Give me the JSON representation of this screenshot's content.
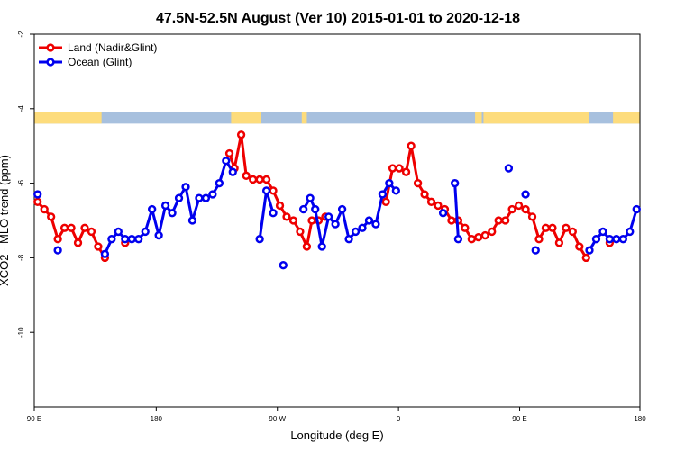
{
  "chart_data": {
    "type": "line",
    "title": "47.5N-52.5N August (Ver 10)   2015-01-01 to 2020-12-18",
    "xlabel": "Longitude (deg E)",
    "ylabel": "XCO2 - MLO trend (ppm)",
    "xlim": [
      90,
      450
    ],
    "ylim": [
      -12,
      -2
    ],
    "x_ticks": [
      {
        "value": 90,
        "label": "90 E"
      },
      {
        "value": 162.5,
        "label": "180"
      },
      {
        "value": 234.5,
        "label": "90 W"
      },
      {
        "value": 306.5,
        "label": "0"
      },
      {
        "value": 378.5,
        "label": "90 E"
      },
      {
        "value": 450,
        "label": "180"
      }
    ],
    "y_ticks": [
      {
        "value": -2,
        "label": "-2"
      },
      {
        "value": -4,
        "label": "-4"
      },
      {
        "value": -6,
        "label": "-6"
      },
      {
        "value": -8,
        "label": "-8"
      },
      {
        "value": -10,
        "label": "-10"
      }
    ],
    "legend_position": "top-left",
    "land_sea_band": {
      "y_range": [
        -4.4,
        -4.1
      ],
      "land_color": "#FDDC7C",
      "ocean_color": "#A7C0DE"
    },
    "series": [
      {
        "name": "Land (Nadir&Glint)",
        "color": "#EE0000",
        "segments": [
          [
            [
              92,
              -6.5
            ],
            [
              96,
              -6.7
            ],
            [
              100,
              -6.9
            ],
            [
              104,
              -7.5
            ],
            [
              108,
              -7.2
            ],
            [
              112,
              -7.2
            ],
            [
              116,
              -7.6
            ],
            [
              120,
              -7.2
            ],
            [
              124,
              -7.3
            ],
            [
              128,
              -7.7
            ],
            [
              132,
              -8.0
            ]
          ],
          [
            [
              144,
              -7.6
            ]
          ],
          [
            [
              206,
              -5.2
            ],
            [
              209,
              -5.6
            ],
            [
              213,
              -4.7
            ],
            [
              216,
              -5.8
            ],
            [
              220,
              -5.9
            ],
            [
              224,
              -5.9
            ],
            [
              228,
              -5.9
            ],
            [
              232,
              -6.2
            ],
            [
              236,
              -6.6
            ],
            [
              240,
              -6.9
            ],
            [
              244,
              -7.0
            ],
            [
              248,
              -7.3
            ],
            [
              252,
              -7.7
            ],
            [
              255,
              -7.0
            ],
            [
              259,
              -7.0
            ],
            [
              263,
              -6.9
            ]
          ],
          [
            [
              299,
              -6.5
            ],
            [
              303,
              -5.6
            ],
            [
              307,
              -5.6
            ],
            [
              311,
              -5.7
            ],
            [
              314,
              -5.0
            ],
            [
              318,
              -6.0
            ],
            [
              322,
              -6.3
            ],
            [
              326,
              -6.5
            ],
            [
              330,
              -6.6
            ],
            [
              334,
              -6.7
            ],
            [
              338,
              -7.0
            ],
            [
              342,
              -7.0
            ],
            [
              346,
              -7.2
            ],
            [
              350,
              -7.5
            ],
            [
              354,
              -7.45
            ],
            [
              358,
              -7.4
            ],
            [
              362,
              -7.3
            ],
            [
              366,
              -7.0
            ],
            [
              370,
              -7.0
            ],
            [
              374,
              -6.7
            ],
            [
              378,
              -6.6
            ],
            [
              382,
              -6.7
            ],
            [
              386,
              -6.9
            ],
            [
              390,
              -7.5
            ],
            [
              394,
              -7.2
            ],
            [
              398,
              -7.2
            ],
            [
              402,
              -7.6
            ],
            [
              406,
              -7.2
            ],
            [
              410,
              -7.3
            ],
            [
              414,
              -7.7
            ],
            [
              418,
              -8.0
            ]
          ],
          [
            [
              432,
              -7.6
            ]
          ]
        ]
      },
      {
        "name": "Ocean (Glint)",
        "color": "#0000EE",
        "segments": [
          [
            [
              92,
              -6.3
            ]
          ],
          [
            [
              104,
              -7.8
            ]
          ],
          [
            [
              132,
              -7.9
            ],
            [
              136,
              -7.5
            ],
            [
              140,
              -7.3
            ],
            [
              144,
              -7.5
            ],
            [
              148,
              -7.5
            ],
            [
              152,
              -7.5
            ],
            [
              156,
              -7.3
            ],
            [
              160,
              -6.7
            ],
            [
              164,
              -7.4
            ],
            [
              168,
              -6.6
            ],
            [
              172,
              -6.8
            ],
            [
              176,
              -6.4
            ],
            [
              180,
              -6.1
            ],
            [
              184,
              -7.0
            ],
            [
              188,
              -6.4
            ],
            [
              192,
              -6.4
            ],
            [
              196,
              -6.3
            ],
            [
              200,
              -6.0
            ],
            [
              204,
              -5.4
            ],
            [
              208,
              -5.7
            ]
          ],
          [
            [
              224,
              -7.5
            ],
            [
              228,
              -6.2
            ],
            [
              232,
              -6.8
            ]
          ],
          [
            [
              238,
              -8.2
            ]
          ],
          [
            [
              250,
              -6.7
            ],
            [
              254,
              -6.4
            ],
            [
              257,
              -6.7
            ],
            [
              261,
              -7.7
            ],
            [
              265,
              -6.9
            ],
            [
              269,
              -7.1
            ],
            [
              273,
              -6.7
            ],
            [
              277,
              -7.5
            ],
            [
              281,
              -7.3
            ],
            [
              285,
              -7.2
            ],
            [
              289,
              -7.0
            ],
            [
              293,
              -7.1
            ],
            [
              297,
              -6.3
            ],
            [
              301,
              -6.0
            ],
            [
              305,
              -6.2
            ]
          ],
          [
            [
              333,
              -6.8
            ]
          ],
          [
            [
              340,
              -6.0
            ],
            [
              342,
              -7.5
            ]
          ],
          [
            [
              372,
              -5.6
            ]
          ],
          [
            [
              382,
              -6.3
            ]
          ],
          [
            [
              388,
              -7.8
            ]
          ],
          [
            [
              420,
              -7.8
            ],
            [
              424,
              -7.5
            ],
            [
              428,
              -7.3
            ],
            [
              432,
              -7.5
            ],
            [
              436,
              -7.5
            ],
            [
              440,
              -7.5
            ],
            [
              444,
              -7.3
            ],
            [
              448,
              -6.7
            ]
          ]
        ]
      }
    ]
  }
}
